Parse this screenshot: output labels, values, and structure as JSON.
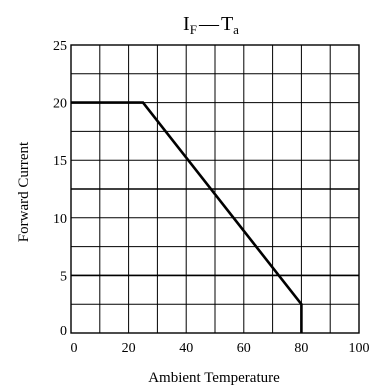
{
  "chart_data": {
    "type": "line",
    "title": {
      "main": "I",
      "sub1": "F",
      "dash": "—",
      "main2": "T",
      "sub2": "a"
    },
    "xlabel": "Ambient Temperature",
    "ylabel": "Forward Current",
    "xlim": [
      0,
      100
    ],
    "ylim": [
      0,
      25
    ],
    "xticks": [
      0,
      20,
      40,
      60,
      80,
      100
    ],
    "yticks": [
      0,
      5,
      10,
      15,
      20,
      25
    ],
    "grid": true,
    "x_grid_step": 10,
    "y_grid_step": 2.5,
    "emphasized_y": [
      12.5,
      5
    ],
    "series": [
      {
        "x": [
          0,
          25,
          80,
          80
        ],
        "y": [
          20,
          20,
          2.5,
          0
        ]
      }
    ],
    "colors": {
      "line": "#000000",
      "grid": "#000000"
    }
  }
}
